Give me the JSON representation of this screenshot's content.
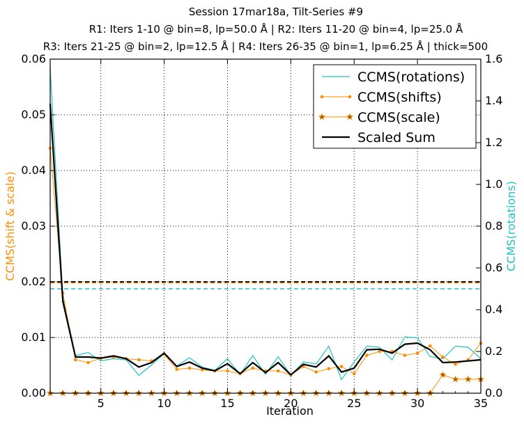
{
  "chart_data": {
    "type": "line",
    "title_lines": [
      "Session 17mar18a, Tilt-Series #9",
      "R1: Iters 1-10 @ bin=8, lp=50.0 Å | R2: Iters 11-20 @ bin=4, lp=25.0 Å",
      "R3: Iters 21-25 @ bin=2, lp=12.5 Å | R4: Iters 26-35 @ bin=1, lp=6.25 Å | thick=500"
    ],
    "xlabel": "Iteration",
    "ylabel_left": "CCMS(shift & scale)",
    "ylabel_right": "CCMS(rotations)",
    "xlim": [
      1,
      35
    ],
    "ylim_left": [
      0,
      0.06
    ],
    "ylim_right": [
      0,
      1.6
    ],
    "xticks": [
      5,
      10,
      15,
      20,
      25,
      30,
      35
    ],
    "yticks_left": [
      0.0,
      0.01,
      0.02,
      0.03,
      0.04,
      0.05,
      0.06
    ],
    "yticks_left_labels": [
      "0.00",
      "0.01",
      "0.02",
      "0.03",
      "0.04",
      "0.05",
      "0.06"
    ],
    "yticks_right": [
      0.0,
      0.2,
      0.4,
      0.6,
      0.8,
      1.0,
      1.2,
      1.4,
      1.6
    ],
    "yticks_right_labels": [
      "0.0",
      "0.2",
      "0.4",
      "0.6",
      "0.8",
      "1.0",
      "1.2",
      "1.4",
      "1.6"
    ],
    "grid": true,
    "legend_position": "top-right",
    "colors": {
      "rotations": "#22c1c3",
      "shifts": "#ff8c00",
      "scale": "#ff8c00",
      "scaled_sum": "#000000",
      "left_axis_label": "#ff8c00",
      "right_axis_label": "#22c1c3"
    },
    "x": [
      1,
      2,
      3,
      4,
      5,
      6,
      7,
      8,
      9,
      10,
      11,
      12,
      13,
      14,
      15,
      16,
      17,
      18,
      19,
      20,
      21,
      22,
      23,
      24,
      25,
      26,
      27,
      28,
      29,
      30,
      31,
      32,
      33,
      34,
      35
    ],
    "series": [
      {
        "name": "CCMS(rotations)",
        "axis": "right",
        "marker": "none",
        "values": [
          1.56,
          0.46,
          0.18,
          0.195,
          0.155,
          0.165,
          0.16,
          0.085,
          0.135,
          0.19,
          0.13,
          0.17,
          0.125,
          0.11,
          0.165,
          0.09,
          0.18,
          0.09,
          0.175,
          0.085,
          0.15,
          0.14,
          0.225,
          0.065,
          0.15,
          0.225,
          0.22,
          0.16,
          0.27,
          0.265,
          0.175,
          0.165,
          0.225,
          0.22,
          0.165
        ]
      },
      {
        "name": "CCMS(shifts)",
        "axis": "left",
        "marker": "dot",
        "values": [
          0.044,
          0.018,
          0.006,
          0.0055,
          0.0063,
          0.0065,
          0.0062,
          0.006,
          0.0058,
          0.007,
          0.0043,
          0.0045,
          0.0042,
          0.004,
          0.004,
          0.0035,
          0.0045,
          0.004,
          0.004,
          0.0033,
          0.0048,
          0.0038,
          0.0044,
          0.0048,
          0.0035,
          0.0068,
          0.0075,
          0.0075,
          0.0068,
          0.0072,
          0.0085,
          0.0065,
          0.0052,
          0.006,
          0.009
        ]
      },
      {
        "name": "CCMS(scale)",
        "axis": "left",
        "marker": "star",
        "values": [
          0,
          0,
          0,
          0,
          0,
          0,
          0,
          0,
          0,
          0,
          0,
          0,
          0,
          0,
          0,
          0,
          0,
          0,
          0,
          0,
          0,
          0,
          0,
          0,
          0,
          0,
          0,
          0,
          0,
          0,
          0,
          0.0033,
          0.0025,
          0.0025,
          0.0025
        ]
      },
      {
        "name": "Scaled Sum",
        "axis": "left",
        "marker": "none",
        "values": [
          0.052,
          0.0165,
          0.0065,
          0.0065,
          0.0063,
          0.0067,
          0.0062,
          0.0047,
          0.0055,
          0.0072,
          0.0048,
          0.0056,
          0.0045,
          0.004,
          0.0053,
          0.0035,
          0.0055,
          0.0037,
          0.0055,
          0.0033,
          0.0052,
          0.0047,
          0.0067,
          0.0038,
          0.0045,
          0.0078,
          0.0079,
          0.0072,
          0.0088,
          0.009,
          0.0078,
          0.0055,
          0.0056,
          0.0058,
          0.006
        ]
      }
    ],
    "reference_lines": [
      {
        "axis": "left",
        "value": 0.02,
        "color": "#000000",
        "style": "dashed"
      },
      {
        "axis": "left",
        "value": 0.02,
        "color": "#ff8c00",
        "style": "dashed"
      },
      {
        "axis": "right",
        "value": 0.5,
        "color": "#22c1c3",
        "style": "dashed"
      }
    ]
  }
}
